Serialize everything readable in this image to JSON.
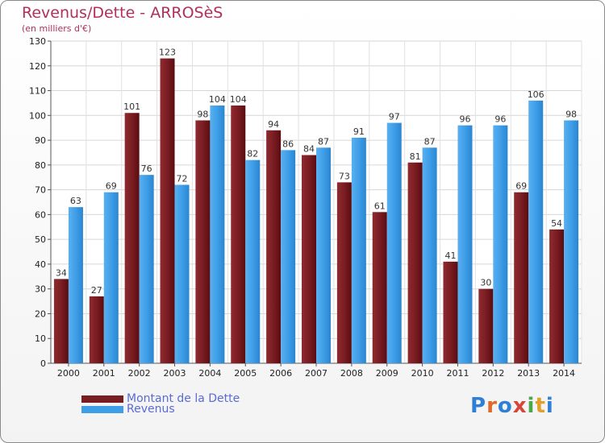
{
  "header": {
    "title": "Revenus/Dette - ARROSèS",
    "subtitle": "(en milliers d'€)"
  },
  "legend": {
    "items": [
      {
        "label": "Montant de la Dette",
        "color": "#7a1d22"
      },
      {
        "label": "Revenus",
        "color": "#3f9ee8"
      }
    ]
  },
  "brand": {
    "letters": [
      "P",
      "r",
      "o",
      "x",
      "i",
      "t",
      "i"
    ],
    "colors": [
      "#2f7fd6",
      "#e06a2a",
      "#2f7fd6",
      "#d8463a",
      "#4aa84a",
      "#e0a02a",
      "#2f7fd6"
    ]
  },
  "chart_data": {
    "type": "bar",
    "title": "Revenus/Dette - ARROSèS",
    "subtitle": "(en milliers d'€)",
    "categories": [
      "2000",
      "2001",
      "2002",
      "2003",
      "2004",
      "2005",
      "2006",
      "2007",
      "2008",
      "2009",
      "2010",
      "2011",
      "2012",
      "2013",
      "2014"
    ],
    "series": [
      {
        "name": "Montant de la Dette",
        "color": "#7a1d22",
        "values": [
          34,
          27,
          101,
          123,
          98,
          104,
          94,
          84,
          73,
          61,
          81,
          41,
          30,
          69,
          54
        ]
      },
      {
        "name": "Revenus",
        "color": "#3f9ee8",
        "values": [
          63,
          69,
          76,
          72,
          104,
          82,
          86,
          87,
          91,
          97,
          87,
          96,
          96,
          106,
          98
        ]
      }
    ],
    "ylim": [
      0,
      130
    ],
    "yticks": [
      0,
      10,
      20,
      30,
      40,
      50,
      60,
      70,
      80,
      90,
      100,
      110,
      120,
      130
    ],
    "grid": true,
    "legend_position": "bottom-left"
  }
}
